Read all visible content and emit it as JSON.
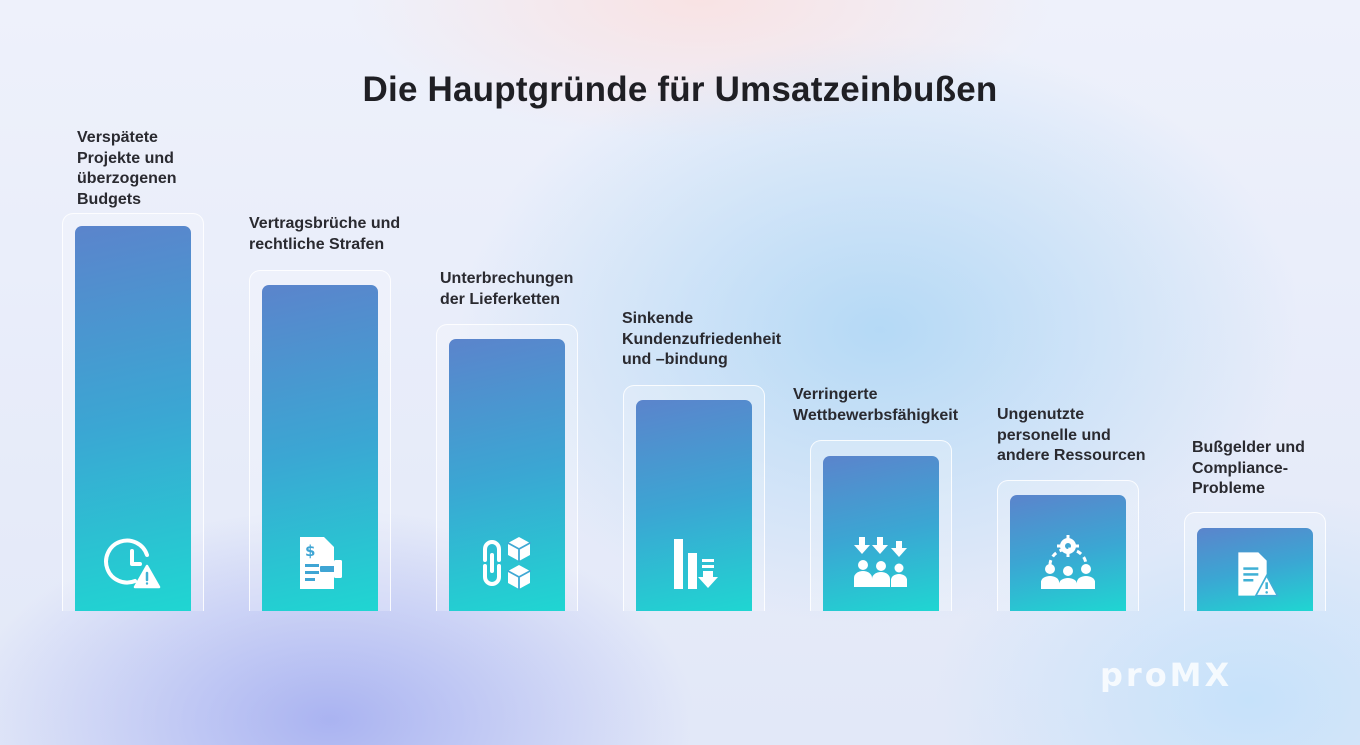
{
  "title": "Die Hauptgründe für Umsatzeinbußen",
  "bars": [
    {
      "label_lines": [
        "Verspätete",
        "Projekte und",
        "überzogenen",
        "Budgets"
      ],
      "icon": "clock-warning-icon"
    },
    {
      "label_lines": [
        "Vertragsbrüche und",
        "rechtliche Strafen"
      ],
      "icon": "contract-gavel-icon"
    },
    {
      "label_lines": [
        "Unterbrechungen",
        "der Lieferketten"
      ],
      "icon": "broken-chain-icon"
    },
    {
      "label_lines": [
        "Sinkende",
        "Kundenzufriedenheit",
        "und –bindung"
      ],
      "icon": "declining-bars-icon"
    },
    {
      "label_lines": [
        "Verringerte",
        "Wettbewerbsfähigkeit"
      ],
      "icon": "team-arrows-down-icon"
    },
    {
      "label_lines": [
        "Ungenutzte",
        "personelle und",
        "andere Ressourcen"
      ],
      "icon": "team-gear-icon"
    },
    {
      "label_lines": [
        "Bußgelder und",
        "Compliance-",
        "Probleme"
      ],
      "icon": "document-warning-icon"
    }
  ],
  "logo": {
    "text": "proMX"
  },
  "colors": {
    "bar_top": "#5b84cc",
    "bar_bottom": "#1fd6d2",
    "title": "#1f1f24",
    "text": "#2a2a30"
  }
}
